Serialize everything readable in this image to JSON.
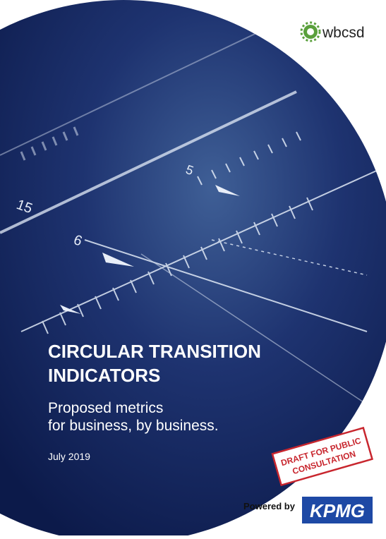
{
  "logo": {
    "text": "wbcsd"
  },
  "photo": {
    "labels": [
      "15",
      "5",
      "6"
    ]
  },
  "title": {
    "lines": [
      "CIRCULAR TRANSITION",
      "INDICATORS"
    ]
  },
  "subtitle": {
    "lines": [
      "Proposed metrics",
      "for business, by business."
    ]
  },
  "date": "July 2019",
  "stamp": {
    "lines": [
      "DRAFT FOR PUBLIC",
      "CONSULTATION"
    ]
  },
  "footer": {
    "powered_by": "Powered by",
    "brand": "KPMG"
  }
}
